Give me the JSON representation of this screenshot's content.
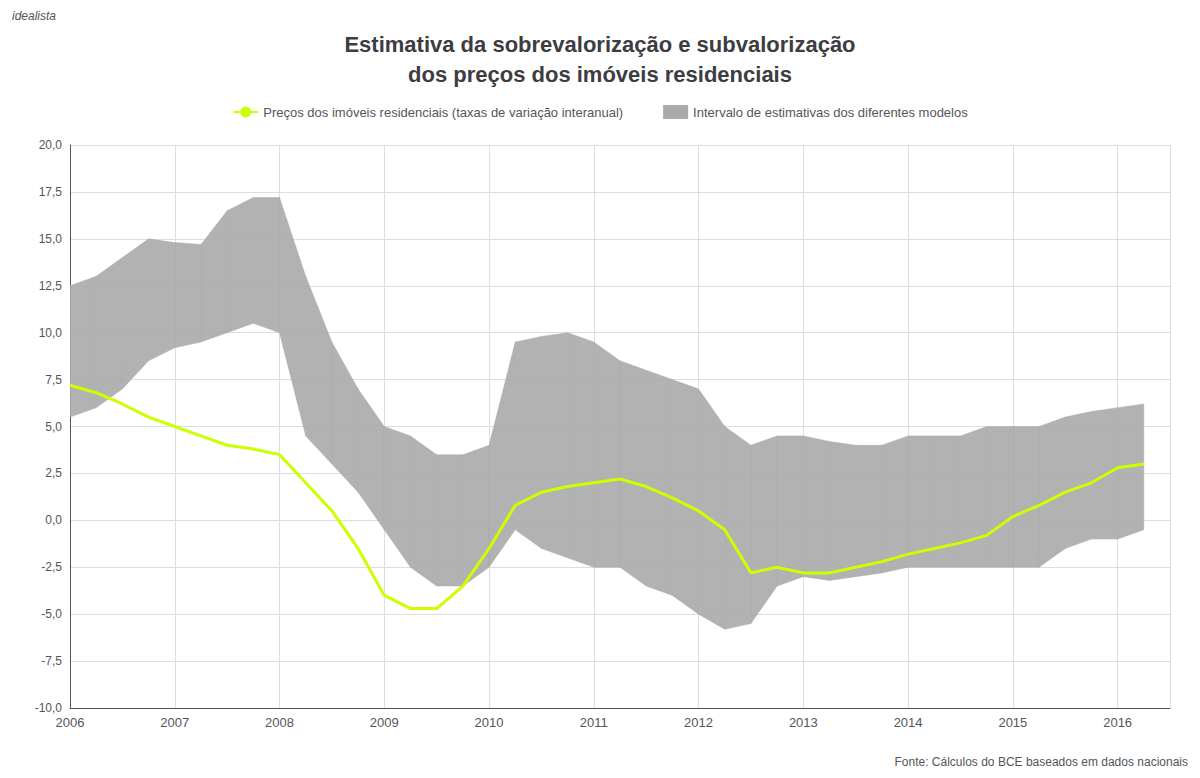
{
  "chart_data": {
    "type": "line",
    "title": "Estimativa da sobrevalorização e subvalorização\ndos preços dos imóveis residenciais",
    "annotations": [
      {
        "text": "idealista"
      },
      {
        "text": "Fonte: Cálculos do BCE baseados em dados nacionais"
      }
    ],
    "x": [
      2006.0,
      2006.25,
      2006.5,
      2006.75,
      2007.0,
      2007.25,
      2007.5,
      2007.75,
      2008.0,
      2008.25,
      2008.5,
      2008.75,
      2009.0,
      2009.25,
      2009.5,
      2009.75,
      2010.0,
      2010.25,
      2010.5,
      2010.75,
      2011.0,
      2011.25,
      2011.5,
      2011.75,
      2012.0,
      2012.25,
      2012.5,
      2012.75,
      2013.0,
      2013.25,
      2013.5,
      2013.75,
      2014.0,
      2014.25,
      2014.5,
      2014.75,
      2015.0,
      2015.25,
      2015.5,
      2015.75,
      2016.0,
      2016.25
    ],
    "series": [
      {
        "name": "Intervalo de estimativas dos diferentes modelos",
        "type": "band",
        "color": "#aaaaaa",
        "upper": [
          12.5,
          13.0,
          14.0,
          15.0,
          14.8,
          14.7,
          16.5,
          17.2,
          17.2,
          13.0,
          9.5,
          7.0,
          5.0,
          4.5,
          3.5,
          3.5,
          4.0,
          9.5,
          9.8,
          10.0,
          9.5,
          8.5,
          8.0,
          7.5,
          7.0,
          5.0,
          4.0,
          4.5,
          4.5,
          4.2,
          4.0,
          4.0,
          4.5,
          4.5,
          4.5,
          5.0,
          5.0,
          5.0,
          5.5,
          5.8,
          6.0,
          6.2
        ],
        "lower": [
          5.5,
          6.0,
          7.0,
          8.5,
          9.2,
          9.5,
          10.0,
          10.5,
          10.0,
          4.5,
          3.0,
          1.5,
          -0.5,
          -2.5,
          -3.5,
          -3.5,
          -2.5,
          -0.5,
          -1.5,
          -2.0,
          -2.5,
          -2.5,
          -3.5,
          -4.0,
          -5.0,
          -5.8,
          -5.5,
          -3.5,
          -3.0,
          -3.2,
          -3.0,
          -2.8,
          -2.5,
          -2.5,
          -2.5,
          -2.5,
          -2.5,
          -2.5,
          -1.5,
          -1.0,
          -1.0,
          -0.5
        ]
      },
      {
        "name": "Preços dos imóveis residenciais (taxas de variação interanual)",
        "type": "line",
        "color": "#ccff00",
        "values": [
          7.2,
          6.8,
          6.2,
          5.5,
          5.0,
          4.5,
          4.0,
          3.8,
          3.5,
          2.0,
          0.5,
          -1.5,
          -4.0,
          -4.7,
          -4.7,
          -3.5,
          -1.5,
          0.8,
          1.5,
          1.8,
          2.0,
          2.2,
          1.8,
          1.2,
          0.5,
          -0.5,
          -2.8,
          -2.5,
          -2.8,
          -2.8,
          -2.5,
          -2.2,
          -1.8,
          -1.5,
          -1.2,
          -0.8,
          0.2,
          0.8,
          1.5,
          2.0,
          2.8,
          3.0
        ]
      }
    ],
    "xlim": [
      2006.0,
      2016.5
    ],
    "xticks": [
      2006,
      2007,
      2008,
      2009,
      2010,
      2011,
      2012,
      2013,
      2014,
      2015,
      2016
    ],
    "ylim": [
      -10.0,
      20.0
    ],
    "yticks": [
      {
        "value": -10.0,
        "label": "-10,0"
      },
      {
        "value": -7.5,
        "label": "-7,5"
      },
      {
        "value": -5.0,
        "label": "-5,0"
      },
      {
        "value": -2.5,
        "label": "-2,5"
      },
      {
        "value": 0.0,
        "label": "0,0"
      },
      {
        "value": 2.5,
        "label": "2,5"
      },
      {
        "value": 5.0,
        "label": "5,0"
      },
      {
        "value": 7.5,
        "label": "7,5"
      },
      {
        "value": 10.0,
        "label": "10,0"
      },
      {
        "value": 12.5,
        "label": "12,5"
      },
      {
        "value": 15.0,
        "label": "15,0"
      },
      {
        "value": 17.5,
        "label": "17,5"
      },
      {
        "value": 20.0,
        "label": "20,0"
      }
    ],
    "grid": true,
    "legend": "top"
  }
}
